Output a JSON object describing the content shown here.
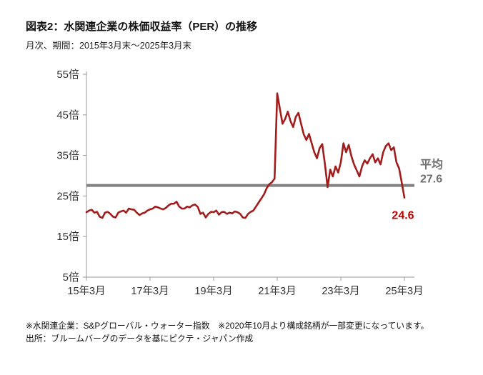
{
  "header": {
    "title": "図表2：水関連企業の株価収益率（PER）の推移",
    "subtitle": "月次、期間：2015年3月末～2025年3月末"
  },
  "chart_data": {
    "type": "line",
    "title": "水関連企業の株価収益率（PER）の推移",
    "frequency": "monthly",
    "x_start_label": "15年3月",
    "x_end_label": "25年3月",
    "ylim": [
      5,
      55
    ],
    "yticks": [
      55,
      45,
      35,
      25,
      15,
      5
    ],
    "ytick_suffix": "倍",
    "x_tick_indices": [
      0,
      24,
      48,
      72,
      96,
      120
    ],
    "x_tick_labels": [
      "15年3月",
      "17年3月",
      "19年3月",
      "21年3月",
      "23年3月",
      "25年3月"
    ],
    "grid": "off",
    "legend": "none",
    "series": [
      {
        "name": "水関連企業PER",
        "color": "#a21c1c",
        "values": [
          21.0,
          21.4,
          21.6,
          20.9,
          21.1,
          19.9,
          19.6,
          20.9,
          21.1,
          20.6,
          19.9,
          19.7,
          20.9,
          21.2,
          21.4,
          20.9,
          21.9,
          21.7,
          21.6,
          20.9,
          20.3,
          20.7,
          20.9,
          21.4,
          21.7,
          21.9,
          22.4,
          22.2,
          21.9,
          21.7,
          22.1,
          22.7,
          23.1,
          23.1,
          23.6,
          22.4,
          21.9,
          21.9,
          22.4,
          22.2,
          22.7,
          22.9,
          22.3,
          20.6,
          20.9,
          19.7,
          20.6,
          21.1,
          21.0,
          21.4,
          20.4,
          21.0,
          21.1,
          20.6,
          20.9,
          20.7,
          21.2,
          21.0,
          20.6,
          19.7,
          19.6,
          20.6,
          21.1,
          21.4,
          22.4,
          23.4,
          24.4,
          25.4,
          26.9,
          27.9,
          28.4,
          29.3,
          50.3,
          46.5,
          42.8,
          44.0,
          45.8,
          43.5,
          42.0,
          44.5,
          45.5,
          42.8,
          40.2,
          38.8,
          40.3,
          38.0,
          35.8,
          34.3,
          36.8,
          37.8,
          32.8,
          27.2,
          31.5,
          29.8,
          32.3,
          30.8,
          33.3,
          38.0,
          35.8,
          37.6,
          34.8,
          32.8,
          31.3,
          29.8,
          32.3,
          33.8,
          33.0,
          34.3,
          35.3,
          33.3,
          34.3,
          32.8,
          35.8,
          37.3,
          38.0,
          36.3,
          37.0,
          33.3,
          31.8,
          28.3,
          24.6
        ]
      }
    ],
    "average_line": {
      "value": 27.6,
      "color": "#808080",
      "label": "平均",
      "value_label": "27.6",
      "label_color": "#6e6e6e"
    },
    "end_label": {
      "text": "24.6",
      "color": "#c00000"
    },
    "axis_color": "#9a9a9a",
    "tick_label_color": "#333333"
  },
  "footnotes": {
    "line1": "※水関連企業：S&Pグローバル・ウォーター指数　※2020年10月より構成銘柄が一部変更になっています。",
    "line2": "出所：ブルームバーグのデータを基にピクテ・ジャパン作成"
  }
}
